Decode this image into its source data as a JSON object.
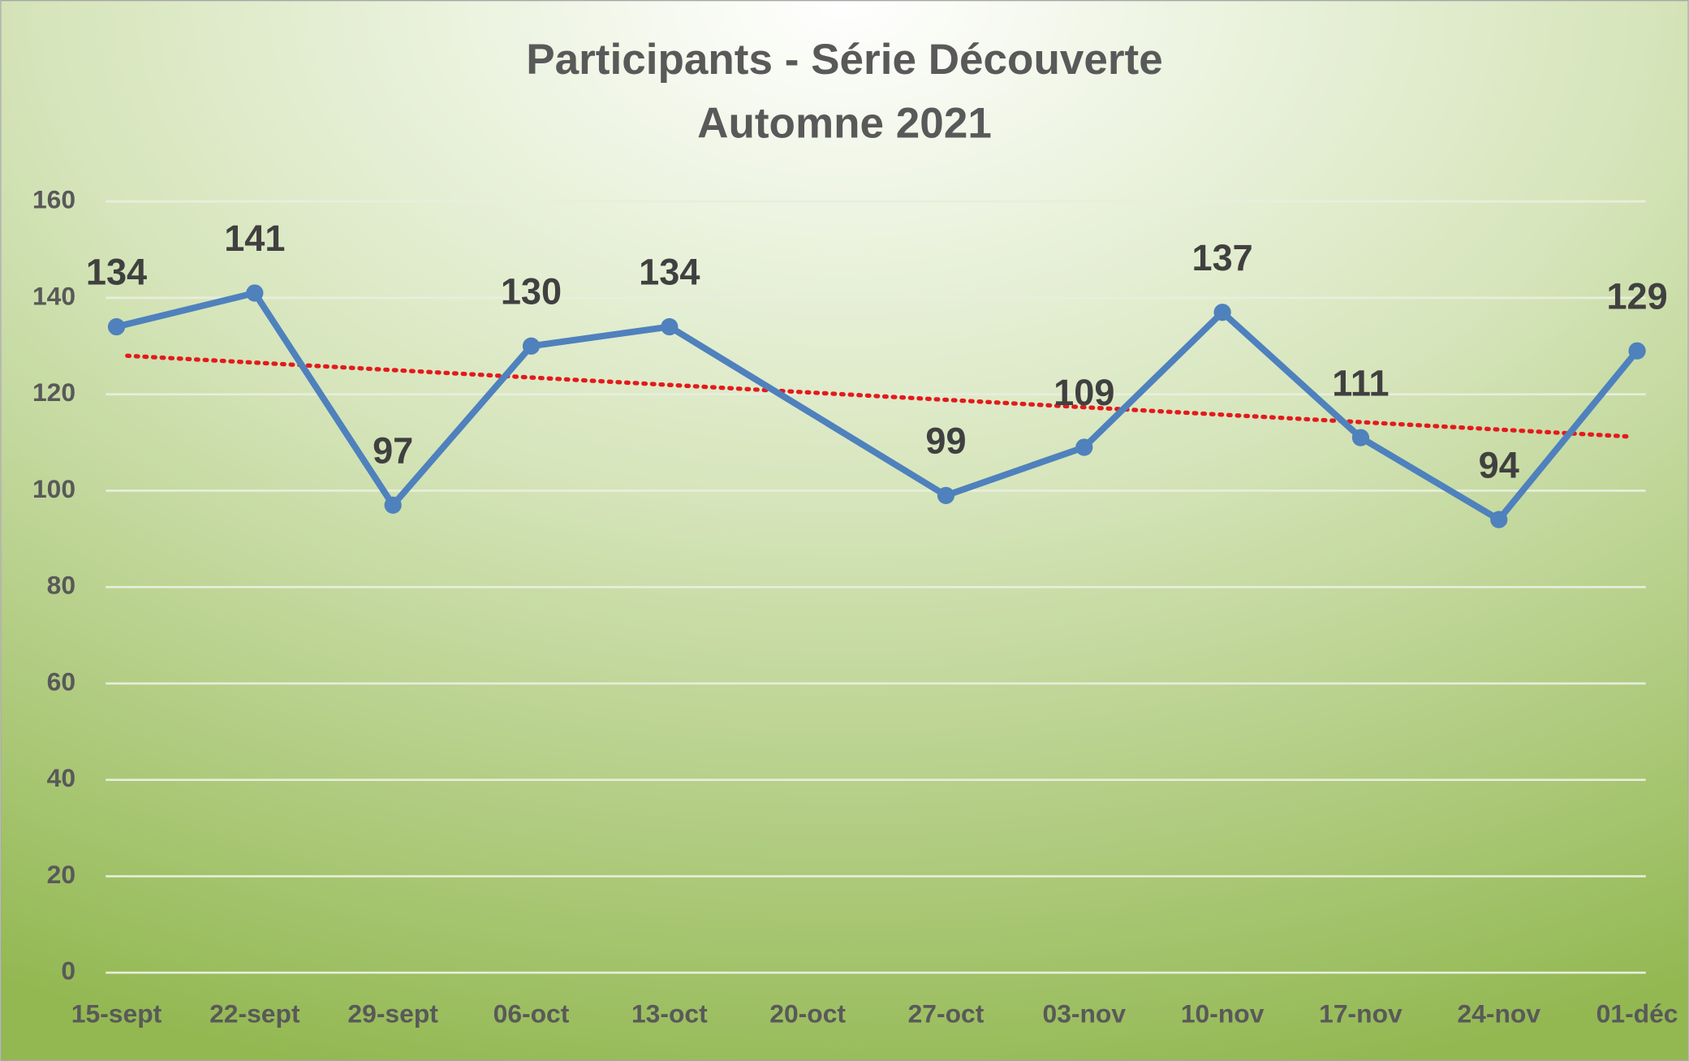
{
  "chart_data": {
    "type": "line",
    "title": "Participants - Série Découverte",
    "subtitle": "Automne 2021",
    "categories": [
      "15-sept",
      "22-sept",
      "29-sept",
      "06-oct",
      "13-oct",
      "20-oct",
      "27-oct",
      "03-nov",
      "10-nov",
      "17-nov",
      "24-nov",
      "01-déc"
    ],
    "series": [
      {
        "name": "Participants",
        "color": "#4f81bd",
        "values": [
          134,
          141,
          97,
          130,
          134,
          null,
          99,
          109,
          137,
          111,
          94,
          129
        ]
      }
    ],
    "trendline": {
      "type": "linear",
      "color": "#e31a1c"
    },
    "ylim": [
      0,
      160
    ],
    "yticks": [
      0,
      20,
      40,
      60,
      80,
      100,
      120,
      140,
      160
    ],
    "grid": true
  }
}
